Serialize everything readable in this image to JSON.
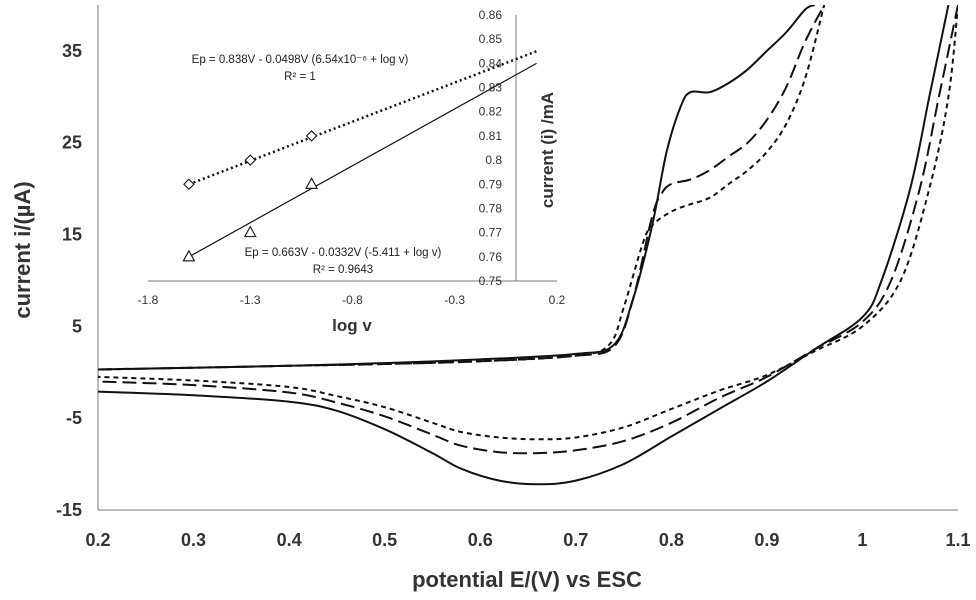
{
  "chart_data": [
    {
      "type": "line",
      "xlabel": "potential E/(V) vs ESC",
      "ylabel": "current i/(µA)",
      "xlim": [
        0.2,
        1.1
      ],
      "ylim": [
        -15,
        40
      ],
      "xticks": [
        "0.2",
        "0.3",
        "0.4",
        "0.5",
        "0.6",
        "0.7",
        "0.8",
        "0.9",
        "1",
        "1.1"
      ],
      "yticks": [
        "-15",
        "-5",
        "5",
        "15",
        "25",
        "35"
      ],
      "series": [
        {
          "name": "solid",
          "style": "solid",
          "forward": [
            [
              0.2,
              0.3
            ],
            [
              0.3,
              0.5
            ],
            [
              0.4,
              0.7
            ],
            [
              0.5,
              1.0
            ],
            [
              0.6,
              1.4
            ],
            [
              0.7,
              2.0
            ],
            [
              0.74,
              3.0
            ],
            [
              0.76,
              8.0
            ],
            [
              0.78,
              16.0
            ],
            [
              0.795,
              24.0
            ],
            [
              0.81,
              29.0
            ],
            [
              0.82,
              30.5
            ],
            [
              0.84,
              30.5
            ],
            [
              0.86,
              31.5
            ],
            [
              0.88,
              33.0
            ],
            [
              0.9,
              35.0
            ],
            [
              0.92,
              37.0
            ],
            [
              0.94,
              39.5
            ],
            [
              0.95,
              40.0
            ]
          ],
          "reverse": [
            [
              1.09,
              40.0
            ],
            [
              1.07,
              30.0
            ],
            [
              1.05,
              20.0
            ],
            [
              1.02,
              10.0
            ],
            [
              1.0,
              6.0
            ],
            [
              0.95,
              2.5
            ],
            [
              0.9,
              -1.0
            ],
            [
              0.85,
              -4.0
            ],
            [
              0.8,
              -7.0
            ],
            [
              0.75,
              -10.0
            ],
            [
              0.7,
              -11.8
            ],
            [
              0.66,
              -12.2
            ],
            [
              0.62,
              -11.8
            ],
            [
              0.58,
              -10.5
            ],
            [
              0.55,
              -8.8
            ],
            [
              0.5,
              -6.2
            ],
            [
              0.45,
              -4.2
            ],
            [
              0.4,
              -3.2
            ],
            [
              0.3,
              -2.5
            ],
            [
              0.2,
              -2.1
            ]
          ]
        },
        {
          "name": "long-dash",
          "style": "dashed",
          "forward": [
            [
              0.2,
              0.3
            ],
            [
              0.3,
              0.5
            ],
            [
              0.4,
              0.7
            ],
            [
              0.5,
              0.9
            ],
            [
              0.6,
              1.2
            ],
            [
              0.7,
              1.8
            ],
            [
              0.74,
              2.8
            ],
            [
              0.76,
              8.0
            ],
            [
              0.78,
              17.0
            ],
            [
              0.79,
              19.5
            ],
            [
              0.8,
              20.5
            ],
            [
              0.82,
              21.0
            ],
            [
              0.84,
              22.0
            ],
            [
              0.86,
              23.5
            ],
            [
              0.88,
              25.0
            ],
            [
              0.9,
              27.5
            ],
            [
              0.92,
              31.0
            ],
            [
              0.94,
              36.0
            ],
            [
              0.96,
              40.0
            ]
          ],
          "reverse": [
            [
              1.1,
              40.0
            ],
            [
              1.08,
              30.0
            ],
            [
              1.06,
              20.0
            ],
            [
              1.03,
              10.0
            ],
            [
              1.0,
              5.5
            ],
            [
              0.95,
              2.5
            ],
            [
              0.9,
              -0.5
            ],
            [
              0.85,
              -2.8
            ],
            [
              0.8,
              -5.5
            ],
            [
              0.75,
              -7.5
            ],
            [
              0.7,
              -8.5
            ],
            [
              0.66,
              -8.8
            ],
            [
              0.62,
              -8.7
            ],
            [
              0.58,
              -8.0
            ],
            [
              0.55,
              -6.8
            ],
            [
              0.5,
              -4.8
            ],
            [
              0.45,
              -3.3
            ],
            [
              0.4,
              -2.2
            ],
            [
              0.3,
              -1.4
            ],
            [
              0.2,
              -1.0
            ]
          ]
        },
        {
          "name": "short-dash",
          "style": "dotted",
          "forward": [
            [
              0.2,
              0.3
            ],
            [
              0.3,
              0.5
            ],
            [
              0.4,
              0.7
            ],
            [
              0.5,
              0.9
            ],
            [
              0.6,
              1.2
            ],
            [
              0.7,
              1.8
            ],
            [
              0.735,
              3.0
            ],
            [
              0.75,
              7.0
            ],
            [
              0.77,
              14.0
            ],
            [
              0.78,
              16.0
            ],
            [
              0.8,
              17.5
            ],
            [
              0.82,
              18.3
            ],
            [
              0.84,
              19.0
            ],
            [
              0.86,
              20.5
            ],
            [
              0.88,
              22.0
            ],
            [
              0.9,
              24.0
            ],
            [
              0.92,
              27.0
            ],
            [
              0.94,
              32.0
            ],
            [
              0.96,
              40.0
            ]
          ],
          "reverse": [
            [
              1.1,
              40.0
            ],
            [
              1.09,
              30.0
            ],
            [
              1.07,
              20.0
            ],
            [
              1.04,
              10.0
            ],
            [
              1.0,
              5.0
            ],
            [
              0.95,
              2.3
            ],
            [
              0.9,
              -0.3
            ],
            [
              0.85,
              -2.0
            ],
            [
              0.8,
              -4.0
            ],
            [
              0.75,
              -6.0
            ],
            [
              0.7,
              -7.1
            ],
            [
              0.66,
              -7.3
            ],
            [
              0.62,
              -7.1
            ],
            [
              0.58,
              -6.5
            ],
            [
              0.55,
              -5.5
            ],
            [
              0.5,
              -3.8
            ],
            [
              0.45,
              -2.6
            ],
            [
              0.4,
              -1.6
            ],
            [
              0.3,
              -0.9
            ],
            [
              0.2,
              -0.5
            ]
          ]
        }
      ]
    },
    {
      "type": "scatter",
      "xlabel": "log v",
      "ylabel": "current (i) /mA",
      "xlim": [
        -1.8,
        0.2
      ],
      "ylim": [
        0.75,
        0.86
      ],
      "xticks": [
        "-1.8",
        "-1.3",
        "-0.8",
        "-0.3",
        "0.2"
      ],
      "yticks": [
        "0.75",
        "0.76",
        "0.77",
        "0.78",
        "0.79",
        "0.8",
        "0.81",
        "0.82",
        "0.83",
        "0.84",
        "0.85",
        "0.86"
      ],
      "series": [
        {
          "name": "diamond",
          "marker": "diamond",
          "fit": "dotted",
          "x": [
            -1.6,
            -1.3,
            -1.0
          ],
          "y": [
            0.79,
            0.8,
            0.81
          ],
          "fit_line": [
            [
              -1.6,
              0.79
            ],
            [
              0.1,
              0.845
            ]
          ],
          "equation": "Ep = 0.838V - 0.0498V (6.54x10⁻⁶ + log  v)",
          "r2": "R² = 1"
        },
        {
          "name": "triangle",
          "marker": "triangle",
          "fit": "solid",
          "x": [
            -1.6,
            -1.3,
            -1.0
          ],
          "y": [
            0.76,
            0.77,
            0.79
          ],
          "fit_line": [
            [
              -1.6,
              0.76
            ],
            [
              0.1,
              0.84
            ]
          ],
          "equation": "Ep = 0.663V - 0.0332V (-5.411 + log v)",
          "r2": "R² = 0.9643"
        }
      ]
    }
  ]
}
